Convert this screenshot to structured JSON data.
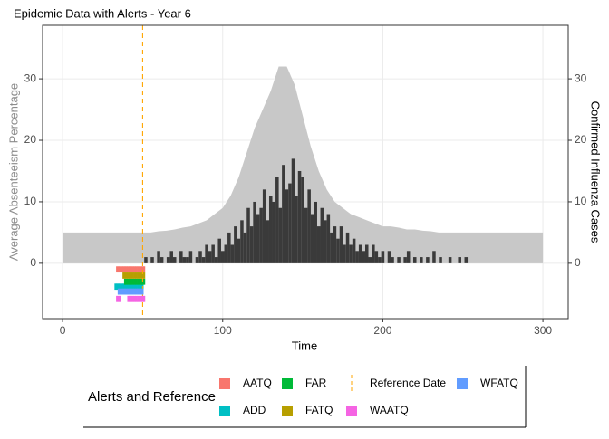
{
  "chart_data": {
    "type": "combo",
    "title": "Epidemic Data with Alerts - Year 6",
    "x_label": "Time",
    "y_label": "Average Absenteeism Percentage",
    "y2_label": "Confirmed Influenza Cases",
    "xlim": [
      -12.5,
      315.8
    ],
    "xticks": [
      0,
      100,
      200,
      300
    ],
    "ylim": [
      -9,
      38.7
    ],
    "yticks": [
      0,
      10,
      20,
      30
    ],
    "y2lim": [
      -9,
      38.7
    ],
    "y2ticks": [
      0,
      10,
      20,
      30
    ],
    "grid": true,
    "legend": {
      "title": "Alerts and Reference",
      "position": "bottom"
    },
    "series": [
      {
        "type": "area",
        "color": "#c8c8c8",
        "x": [
          0,
          5,
          10,
          15,
          20,
          25,
          30,
          35,
          40,
          45,
          50,
          55,
          60,
          65,
          70,
          75,
          80,
          85,
          90,
          95,
          100,
          105,
          110,
          115,
          120,
          125,
          130,
          135,
          140,
          145,
          150,
          155,
          160,
          165,
          170,
          175,
          180,
          185,
          190,
          195,
          200,
          205,
          210,
          215,
          220,
          225,
          230,
          235,
          240,
          245,
          250,
          255,
          260,
          265,
          270,
          275,
          280,
          285,
          290,
          295,
          300
        ],
        "values": [
          5,
          5,
          5,
          5,
          5,
          5,
          5,
          5,
          5,
          5,
          5,
          5,
          5.2,
          5.3,
          5.5,
          5.8,
          6,
          6.5,
          7,
          8,
          9,
          11,
          14,
          18,
          22,
          25,
          28,
          32,
          32,
          29,
          24,
          19,
          15,
          12,
          10,
          9,
          8,
          7.5,
          7,
          6.5,
          6,
          6,
          5.8,
          5.5,
          5.5,
          5.3,
          5.2,
          5,
          5,
          5,
          5,
          5,
          5,
          5,
          5,
          5,
          5,
          5,
          5,
          5,
          5
        ]
      },
      {
        "type": "bar",
        "axis": "y2",
        "color": "#3a3a3a",
        "x": [
          52,
          54,
          56,
          58,
          60,
          62,
          64,
          66,
          68,
          70,
          72,
          74,
          76,
          78,
          80,
          82,
          84,
          86,
          88,
          90,
          92,
          94,
          96,
          98,
          100,
          102,
          104,
          106,
          108,
          110,
          112,
          114,
          116,
          118,
          120,
          122,
          124,
          126,
          128,
          130,
          132,
          134,
          136,
          138,
          140,
          142,
          144,
          146,
          148,
          150,
          152,
          154,
          156,
          158,
          160,
          162,
          164,
          166,
          168,
          170,
          172,
          174,
          176,
          178,
          180,
          182,
          184,
          186,
          188,
          190,
          192,
          194,
          196,
          198,
          200,
          202,
          204,
          206,
          208,
          210,
          212,
          214,
          216,
          218,
          220,
          222,
          224,
          226,
          228,
          230,
          232,
          234,
          236,
          238,
          240,
          242,
          244,
          246,
          248,
          250,
          252,
          254
        ],
        "values": [
          1,
          0,
          1,
          0,
          2,
          1,
          0,
          1,
          2,
          1,
          0,
          2,
          1,
          1,
          2,
          0,
          1,
          2,
          1,
          3,
          2,
          3,
          1,
          4,
          2,
          3,
          5,
          3,
          6,
          4,
          7,
          5,
          9,
          6,
          10,
          8,
          9,
          12,
          7,
          11,
          10,
          14,
          9,
          16,
          12,
          13,
          17,
          11,
          15,
          14,
          9,
          12,
          8,
          10,
          6,
          9,
          7,
          8,
          5,
          6,
          4,
          6,
          3,
          5,
          3,
          4,
          2,
          3,
          2,
          3,
          1,
          3,
          2,
          1,
          2,
          0,
          2,
          1,
          0,
          1,
          0,
          1,
          2,
          0,
          1,
          0,
          1,
          0,
          1,
          0,
          2,
          0,
          1,
          0,
          0,
          1,
          0,
          0,
          1,
          0,
          1,
          0
        ]
      },
      {
        "type": "tile",
        "name": "AATQ",
        "color": "#F8766D",
        "y": -1,
        "x": [
          34,
          35,
          36,
          37,
          38,
          39,
          40,
          41,
          42,
          43,
          44,
          45,
          46,
          47,
          48,
          49,
          50,
          51
        ]
      },
      {
        "type": "tile",
        "name": "ADD",
        "color": "#00BFC4",
        "y": -3.8,
        "x": [
          33,
          34,
          35,
          36,
          37,
          38,
          39,
          40,
          41,
          42,
          43,
          44,
          45,
          46,
          47,
          48,
          49,
          50
        ]
      },
      {
        "type": "tile",
        "name": "FAR",
        "color": "#00BA38",
        "y": -3,
        "x": [
          39,
          40,
          41,
          42,
          43,
          44,
          45,
          46,
          47,
          48,
          49,
          50,
          51
        ]
      },
      {
        "type": "tile",
        "name": "FATQ",
        "color": "#B79F00",
        "y": -2,
        "x": [
          38,
          39,
          40,
          41,
          42,
          43,
          44,
          45,
          46,
          47,
          48,
          49,
          50,
          51
        ]
      },
      {
        "type": "vline",
        "name": "Reference Date",
        "color": "#FFA500",
        "x": [
          50
        ]
      },
      {
        "type": "tile",
        "name": "WAATQ",
        "color": "#F564E3",
        "y": -5.8,
        "x": [
          34,
          35,
          36,
          41,
          42,
          43,
          44,
          45,
          46,
          47,
          48,
          49,
          50,
          51
        ]
      },
      {
        "type": "tile",
        "name": "WFATQ",
        "color": "#619CFF",
        "y": -4.6,
        "x": [
          35,
          36,
          37,
          38,
          39,
          40,
          41,
          42,
          43,
          44,
          45,
          46,
          47,
          48,
          49,
          50
        ]
      }
    ]
  }
}
